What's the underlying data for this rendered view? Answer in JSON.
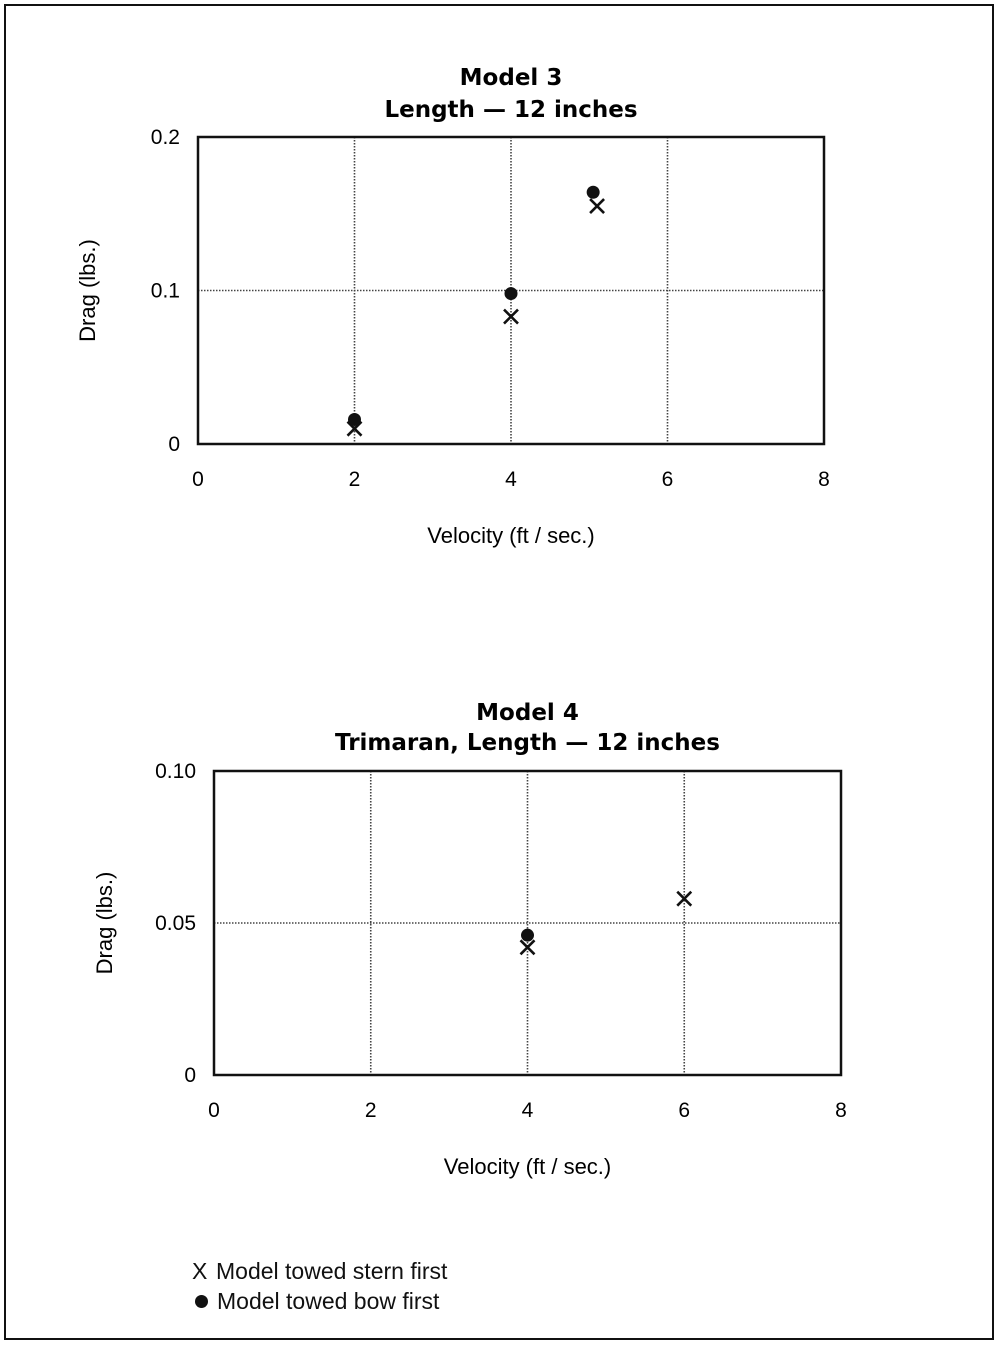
{
  "chart_data": [
    {
      "type": "scatter",
      "title": "Model 3",
      "subtitle": "Length — 12 inches",
      "xlabel": "Velocity (ft / sec.)",
      "ylabel": "Drag (lbs.)",
      "xlim": [
        0,
        8
      ],
      "ylim": [
        0,
        0.2
      ],
      "xticks": [
        "0",
        "2",
        "4",
        "6",
        "8"
      ],
      "yticks": [
        "0",
        "0.1",
        "0.2"
      ],
      "grid": true,
      "series": [
        {
          "name": "Model towed stern first",
          "marker": "x",
          "points": [
            [
              2,
              0.01
            ],
            [
              4,
              0.083
            ],
            [
              5.1,
              0.155
            ]
          ]
        },
        {
          "name": "Model towed bow first",
          "marker": "dot",
          "points": [
            [
              2,
              0.016
            ],
            [
              4,
              0.098
            ],
            [
              5.05,
              0.164
            ]
          ]
        }
      ]
    },
    {
      "type": "scatter",
      "title": "Model 4",
      "subtitle": "Trimaran, Length — 12 inches",
      "xlabel": "Velocity (ft / sec.)",
      "ylabel": "Drag (lbs.)",
      "xlim": [
        0,
        8
      ],
      "ylim": [
        0,
        0.1
      ],
      "xticks": [
        "0",
        "2",
        "4",
        "6",
        "8"
      ],
      "yticks": [
        "0",
        "0.05",
        "0.10"
      ],
      "grid": true,
      "series": [
        {
          "name": "Model towed stern first",
          "marker": "x",
          "points": [
            [
              4,
              0.042
            ],
            [
              6,
              0.058
            ]
          ]
        },
        {
          "name": "Model towed bow first",
          "marker": "dot",
          "points": [
            [
              4,
              0.046
            ]
          ]
        }
      ]
    }
  ],
  "legend": [
    {
      "symbol": "X",
      "label": "Model towed stern first"
    },
    {
      "symbol": "●",
      "label": "Model towed bow first"
    }
  ]
}
